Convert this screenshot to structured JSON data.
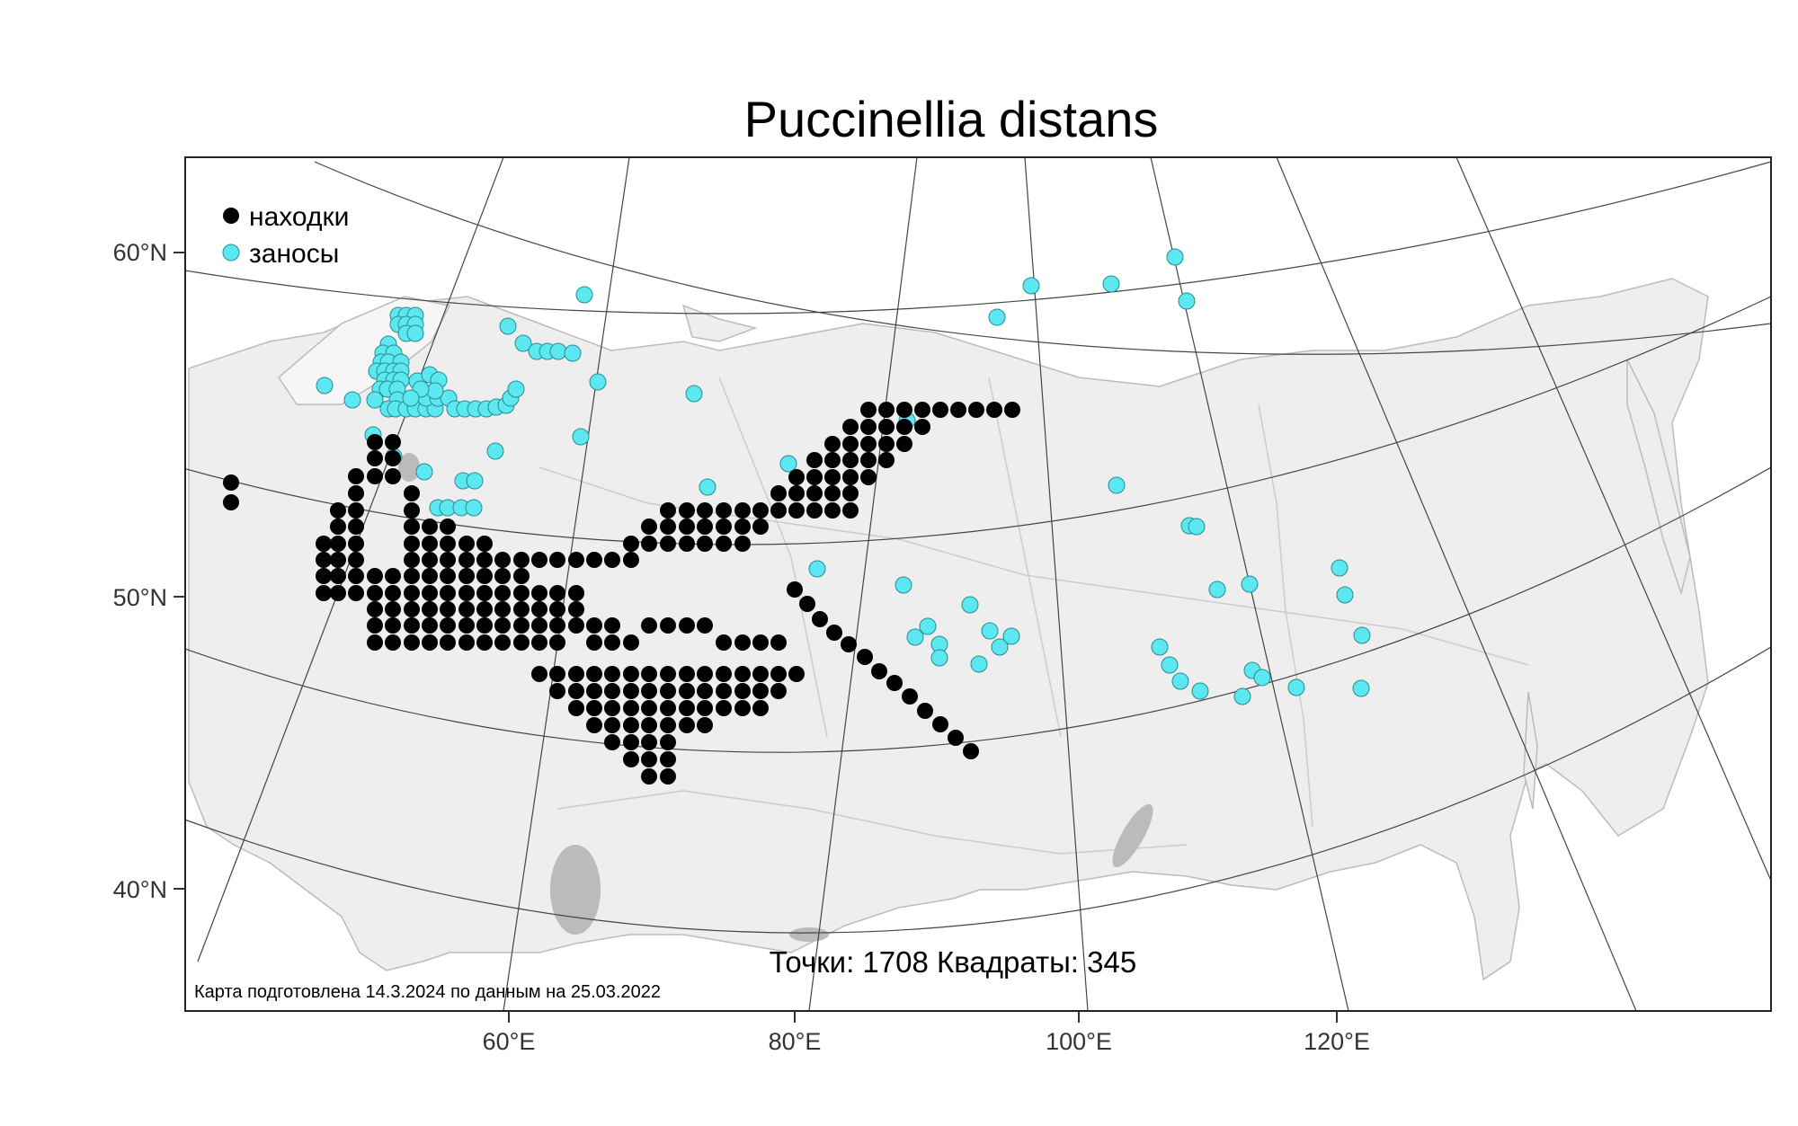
{
  "title": "Puccinellia distans",
  "legend": {
    "items": [
      {
        "label": "находки",
        "color": "#000000"
      },
      {
        "label": "заносы",
        "color": "#5be8f0"
      }
    ]
  },
  "axes": {
    "lat_labels": [
      "60°N",
      "50°N",
      "40°N"
    ],
    "lon_labels": [
      "60°E",
      "80°E",
      "100°E",
      "120°E"
    ]
  },
  "stats_text": "Точки: 1708 Квадраты: 345",
  "credit_text": "Карта подготовлена 14.3.2024 по данным на 25.03.2022",
  "colors": {
    "finds": "#000000",
    "introductions": "#5be8f0",
    "land": "#eeeeee",
    "border": "#bbbbbb",
    "graticule": "#444444"
  },
  "map_data": {
    "introductions": [
      [
        443,
        351
      ],
      [
        452,
        351
      ],
      [
        462,
        351
      ],
      [
        443,
        361
      ],
      [
        452,
        361
      ],
      [
        462,
        361
      ],
      [
        452,
        371
      ],
      [
        462,
        371
      ],
      [
        432,
        383
      ],
      [
        426,
        393
      ],
      [
        438,
        393
      ],
      [
        424,
        403
      ],
      [
        432,
        403
      ],
      [
        446,
        403
      ],
      [
        419,
        413
      ],
      [
        428,
        413
      ],
      [
        438,
        413
      ],
      [
        446,
        413
      ],
      [
        428,
        423
      ],
      [
        438,
        423
      ],
      [
        446,
        423
      ],
      [
        361,
        429
      ],
      [
        423,
        433
      ],
      [
        431,
        433
      ],
      [
        442,
        433
      ],
      [
        392,
        445
      ],
      [
        417,
        445
      ],
      [
        442,
        445
      ],
      [
        432,
        455
      ],
      [
        440,
        455
      ],
      [
        452,
        455
      ],
      [
        462,
        455
      ],
      [
        474,
        455
      ],
      [
        484,
        455
      ],
      [
        474,
        443
      ],
      [
        487,
        443
      ],
      [
        499,
        443
      ],
      [
        506,
        455
      ],
      [
        517,
        455
      ],
      [
        529,
        455
      ],
      [
        541,
        455
      ],
      [
        552,
        453
      ],
      [
        563,
        451
      ],
      [
        568,
        443
      ],
      [
        574,
        433
      ],
      [
        464,
        424
      ],
      [
        478,
        417
      ],
      [
        488,
        423
      ],
      [
        484,
        435
      ],
      [
        468,
        433
      ],
      [
        457,
        443
      ],
      [
        415,
        484
      ],
      [
        438,
        508
      ],
      [
        472,
        525
      ],
      [
        487,
        565
      ],
      [
        498,
        565
      ],
      [
        513,
        565
      ],
      [
        527,
        565
      ],
      [
        515,
        535
      ],
      [
        528,
        535
      ],
      [
        551,
        502
      ],
      [
        646,
        486
      ],
      [
        665,
        425
      ],
      [
        772,
        438
      ],
      [
        787,
        542
      ],
      [
        877,
        516
      ],
      [
        1009,
        468
      ],
      [
        565,
        363
      ],
      [
        650,
        328
      ],
      [
        582,
        382
      ],
      [
        597,
        391
      ],
      [
        609,
        391
      ],
      [
        621,
        391
      ],
      [
        637,
        393
      ],
      [
        1109,
        353
      ],
      [
        1147,
        318
      ],
      [
        1236,
        316
      ],
      [
        1307,
        286
      ],
      [
        1320,
        335
      ],
      [
        1242,
        540
      ],
      [
        1323,
        585
      ],
      [
        1331,
        586
      ],
      [
        909,
        633
      ],
      [
        1005,
        651
      ],
      [
        1018,
        709
      ],
      [
        1032,
        697
      ],
      [
        1079,
        673
      ],
      [
        1089,
        739
      ],
      [
        1112,
        720
      ],
      [
        1125,
        708
      ],
      [
        1045,
        717
      ],
      [
        1045,
        732
      ],
      [
        1101,
        702
      ],
      [
        1290,
        720
      ],
      [
        1301,
        740
      ],
      [
        1313,
        758
      ],
      [
        1335,
        769
      ],
      [
        1382,
        775
      ],
      [
        1393,
        746
      ],
      [
        1404,
        754
      ],
      [
        1442,
        765
      ],
      [
        1514,
        766
      ],
      [
        1515,
        707
      ],
      [
        1490,
        632
      ],
      [
        1496,
        662
      ],
      [
        1354,
        656
      ],
      [
        1390,
        650
      ]
    ],
    "finds": [
      [
        257,
        537
      ],
      [
        257,
        559
      ],
      [
        417,
        492
      ],
      [
        437,
        492
      ],
      [
        417,
        510
      ],
      [
        437,
        510
      ],
      [
        417,
        530
      ],
      [
        437,
        530
      ],
      [
        396,
        530
      ],
      [
        396,
        549
      ],
      [
        396,
        568
      ],
      [
        396,
        586
      ],
      [
        376,
        568
      ],
      [
        376,
        586
      ],
      [
        376,
        605
      ],
      [
        376,
        623
      ],
      [
        360,
        605
      ],
      [
        360,
        623
      ],
      [
        360,
        641
      ],
      [
        360,
        660
      ],
      [
        376,
        641
      ],
      [
        376,
        660
      ],
      [
        396,
        605
      ],
      [
        396,
        623
      ],
      [
        396,
        641
      ],
      [
        396,
        660
      ],
      [
        417,
        641
      ],
      [
        417,
        660
      ],
      [
        417,
        678
      ],
      [
        437,
        641
      ],
      [
        437,
        660
      ],
      [
        437,
        678
      ],
      [
        417,
        696
      ],
      [
        437,
        696
      ],
      [
        417,
        715
      ],
      [
        437,
        715
      ],
      [
        458,
        549
      ],
      [
        458,
        568
      ],
      [
        458,
        586
      ],
      [
        458,
        605
      ],
      [
        458,
        623
      ],
      [
        458,
        641
      ],
      [
        458,
        660
      ],
      [
        458,
        678
      ],
      [
        458,
        696
      ],
      [
        458,
        715
      ],
      [
        478,
        586
      ],
      [
        478,
        605
      ],
      [
        478,
        623
      ],
      [
        478,
        641
      ],
      [
        478,
        660
      ],
      [
        478,
        678
      ],
      [
        478,
        696
      ],
      [
        478,
        715
      ],
      [
        498,
        586
      ],
      [
        498,
        605
      ],
      [
        498,
        623
      ],
      [
        498,
        641
      ],
      [
        498,
        660
      ],
      [
        498,
        678
      ],
      [
        498,
        696
      ],
      [
        498,
        715
      ],
      [
        519,
        605
      ],
      [
        519,
        623
      ],
      [
        519,
        641
      ],
      [
        519,
        660
      ],
      [
        519,
        678
      ],
      [
        519,
        696
      ],
      [
        519,
        715
      ],
      [
        539,
        605
      ],
      [
        539,
        623
      ],
      [
        539,
        641
      ],
      [
        539,
        660
      ],
      [
        539,
        678
      ],
      [
        539,
        696
      ],
      [
        539,
        715
      ],
      [
        559,
        623
      ],
      [
        559,
        641
      ],
      [
        559,
        660
      ],
      [
        559,
        678
      ],
      [
        559,
        696
      ],
      [
        559,
        715
      ],
      [
        580,
        641
      ],
      [
        580,
        660
      ],
      [
        580,
        678
      ],
      [
        580,
        696
      ],
      [
        580,
        715
      ],
      [
        600,
        660
      ],
      [
        600,
        678
      ],
      [
        600,
        696
      ],
      [
        600,
        715
      ],
      [
        620,
        660
      ],
      [
        620,
        678
      ],
      [
        620,
        696
      ],
      [
        620,
        715
      ],
      [
        641,
        660
      ],
      [
        641,
        678
      ],
      [
        641,
        696
      ],
      [
        661,
        696
      ],
      [
        661,
        715
      ],
      [
        681,
        696
      ],
      [
        681,
        715
      ],
      [
        702,
        715
      ],
      [
        722,
        696
      ],
      [
        743,
        696
      ],
      [
        764,
        696
      ],
      [
        784,
        696
      ],
      [
        805,
        715
      ],
      [
        826,
        715
      ],
      [
        846,
        715
      ],
      [
        866,
        715
      ],
      [
        580,
        623
      ],
      [
        600,
        623
      ],
      [
        620,
        623
      ],
      [
        641,
        623
      ],
      [
        661,
        623
      ],
      [
        681,
        623
      ],
      [
        702,
        623
      ],
      [
        702,
        605
      ],
      [
        722,
        605
      ],
      [
        743,
        605
      ],
      [
        764,
        605
      ],
      [
        784,
        605
      ],
      [
        805,
        605
      ],
      [
        826,
        605
      ],
      [
        722,
        586
      ],
      [
        743,
        586
      ],
      [
        764,
        586
      ],
      [
        784,
        586
      ],
      [
        805,
        586
      ],
      [
        826,
        586
      ],
      [
        846,
        586
      ],
      [
        743,
        568
      ],
      [
        764,
        568
      ],
      [
        784,
        568
      ],
      [
        805,
        568
      ],
      [
        826,
        568
      ],
      [
        846,
        568
      ],
      [
        866,
        568
      ],
      [
        886,
        568
      ],
      [
        906,
        568
      ],
      [
        926,
        568
      ],
      [
        946,
        568
      ],
      [
        866,
        549
      ],
      [
        886,
        549
      ],
      [
        906,
        549
      ],
      [
        926,
        549
      ],
      [
        946,
        549
      ],
      [
        886,
        531
      ],
      [
        906,
        531
      ],
      [
        926,
        531
      ],
      [
        946,
        531
      ],
      [
        966,
        531
      ],
      [
        906,
        512
      ],
      [
        926,
        512
      ],
      [
        946,
        512
      ],
      [
        966,
        512
      ],
      [
        986,
        512
      ],
      [
        926,
        494
      ],
      [
        946,
        494
      ],
      [
        966,
        494
      ],
      [
        986,
        494
      ],
      [
        1006,
        494
      ],
      [
        946,
        475
      ],
      [
        966,
        475
      ],
      [
        986,
        475
      ],
      [
        1006,
        475
      ],
      [
        1026,
        475
      ],
      [
        966,
        456
      ],
      [
        986,
        456
      ],
      [
        1006,
        456
      ],
      [
        1026,
        456
      ],
      [
        1046,
        456
      ],
      [
        1066,
        456
      ],
      [
        1086,
        456
      ],
      [
        1106,
        456
      ],
      [
        1126,
        456
      ],
      [
        600,
        750
      ],
      [
        620,
        750
      ],
      [
        641,
        750
      ],
      [
        661,
        750
      ],
      [
        681,
        750
      ],
      [
        702,
        750
      ],
      [
        722,
        750
      ],
      [
        743,
        750
      ],
      [
        764,
        750
      ],
      [
        784,
        750
      ],
      [
        805,
        750
      ],
      [
        826,
        750
      ],
      [
        846,
        750
      ],
      [
        866,
        750
      ],
      [
        886,
        750
      ],
      [
        620,
        769
      ],
      [
        641,
        769
      ],
      [
        661,
        769
      ],
      [
        681,
        769
      ],
      [
        702,
        769
      ],
      [
        722,
        769
      ],
      [
        743,
        769
      ],
      [
        764,
        769
      ],
      [
        784,
        769
      ],
      [
        805,
        769
      ],
      [
        826,
        769
      ],
      [
        846,
        769
      ],
      [
        866,
        769
      ],
      [
        641,
        788
      ],
      [
        661,
        788
      ],
      [
        681,
        788
      ],
      [
        702,
        788
      ],
      [
        722,
        788
      ],
      [
        743,
        788
      ],
      [
        764,
        788
      ],
      [
        784,
        788
      ],
      [
        805,
        788
      ],
      [
        826,
        788
      ],
      [
        846,
        788
      ],
      [
        661,
        807
      ],
      [
        681,
        807
      ],
      [
        702,
        807
      ],
      [
        722,
        807
      ],
      [
        743,
        807
      ],
      [
        764,
        807
      ],
      [
        784,
        807
      ],
      [
        681,
        826
      ],
      [
        702,
        826
      ],
      [
        722,
        826
      ],
      [
        743,
        826
      ],
      [
        702,
        845
      ],
      [
        722,
        845
      ],
      [
        743,
        845
      ],
      [
        722,
        864
      ],
      [
        743,
        864
      ],
      [
        884,
        656
      ],
      [
        898,
        672
      ],
      [
        912,
        689
      ],
      [
        928,
        704
      ],
      [
        944,
        717
      ],
      [
        962,
        731
      ],
      [
        978,
        747
      ],
      [
        995,
        760
      ],
      [
        1012,
        775
      ],
      [
        1029,
        791
      ],
      [
        1046,
        806
      ],
      [
        1063,
        821
      ],
      [
        1080,
        836
      ]
    ]
  }
}
